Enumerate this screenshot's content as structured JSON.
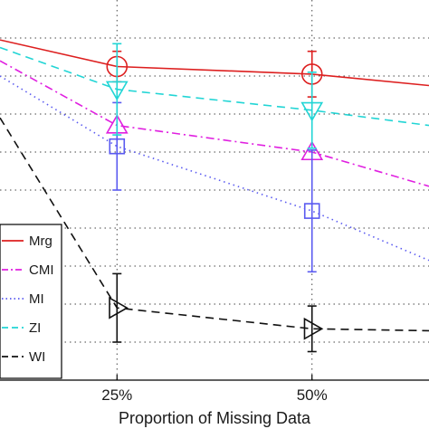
{
  "chart_data": {
    "type": "line",
    "title": "",
    "xlabel": "Proportion of Missing Data",
    "ylabel": "",
    "x_ticks": [
      "25%",
      "50%"
    ],
    "x_values": [
      0.25,
      0.5
    ],
    "xlim": [
      0.1,
      0.65
    ],
    "ylim": [
      0.0,
      1.0
    ],
    "grid": true,
    "legend_position": "bottom-left",
    "series": [
      {
        "name": "Mrg",
        "color": "#dd1f1f",
        "dash": "solid",
        "marker": "circle",
        "x": [
          0.1,
          0.25,
          0.5,
          0.65
        ],
        "y": [
          0.895,
          0.825,
          0.805,
          0.775
        ],
        "err": [
          null,
          0.04,
          0.06,
          null
        ]
      },
      {
        "name": "CMI",
        "color": "#e020e0",
        "dash": "dashdot",
        "marker": "triangle-up",
        "x": [
          0.1,
          0.25,
          0.5,
          0.65
        ],
        "y": [
          0.84,
          0.67,
          0.6,
          0.51
        ],
        "err": [
          null,
          null,
          null,
          null
        ]
      },
      {
        "name": "MI",
        "color": "#5a5af0",
        "dash": "dotted",
        "marker": "square",
        "x": [
          0.1,
          0.25,
          0.5,
          0.65
        ],
        "y": [
          0.8,
          0.615,
          0.445,
          0.315
        ],
        "err": [
          null,
          0.115,
          0.16,
          null
        ]
      },
      {
        "name": "ZI",
        "color": "#22d5d5",
        "dash": "dashed",
        "marker": "triangle-down",
        "x": [
          0.1,
          0.25,
          0.5,
          0.65
        ],
        "y": [
          0.875,
          0.765,
          0.71,
          0.67
        ],
        "err": [
          null,
          0.12,
          0.1,
          null
        ]
      },
      {
        "name": "WI",
        "color": "#111111",
        "dash": "dashed",
        "marker": "triangle-right",
        "x": [
          0.1,
          0.25,
          0.5,
          0.65
        ],
        "y": [
          0.69,
          0.19,
          0.135,
          0.13
        ],
        "err": [
          null,
          0.09,
          0.06,
          null
        ]
      }
    ]
  }
}
